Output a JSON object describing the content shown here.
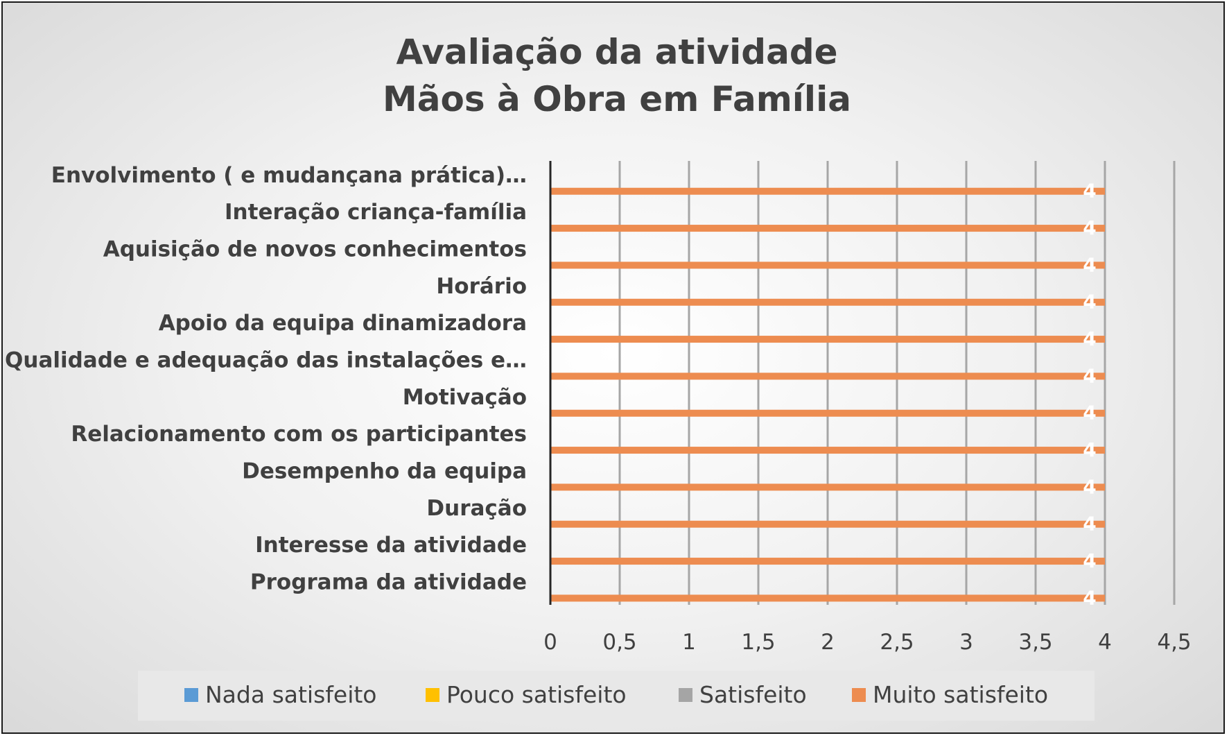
{
  "chart_data": {
    "type": "bar",
    "orientation": "horizontal",
    "title": [
      "Avaliação  da atividade",
      "Mãos à Obra em Família"
    ],
    "categories": [
      "Envolvimento ( e mudançana prática)…",
      "Interação criança-família",
      "Aquisição de novos conhecimentos",
      "Horário",
      "Apoio da equipa dinamizadora",
      "Qualidade e adequação das instalações e…",
      "Motivação",
      "Relacionamento com os participantes",
      "Desempenho da equipa",
      "Duração",
      "Interesse  da atividade",
      "Programa da atividade"
    ],
    "series": [
      {
        "name": "Nada satisfeito",
        "color": "#5b9bd5",
        "values": [
          0,
          0,
          0,
          0,
          0,
          0,
          0,
          0,
          0,
          0,
          0,
          0
        ]
      },
      {
        "name": "Pouco satisfeito",
        "color": "#ffc000",
        "values": [
          0,
          0,
          0,
          0,
          0,
          0,
          0,
          0,
          0,
          0,
          0,
          0
        ]
      },
      {
        "name": "Satisfeito",
        "color": "#a5a5a5",
        "values": [
          0,
          0,
          0,
          0,
          0,
          0,
          0,
          0,
          0,
          0,
          0,
          0
        ]
      },
      {
        "name": "Muito satisfeito",
        "color": "#ed8c50",
        "values": [
          4,
          4,
          4,
          4,
          4,
          4,
          4,
          4,
          4,
          4,
          4,
          4
        ]
      }
    ],
    "data_labels": [
      "4",
      "4",
      "4",
      "4",
      "4",
      "4",
      "4",
      "4",
      "4",
      "4",
      "4",
      "4"
    ],
    "xlim": [
      0,
      4.5
    ],
    "xticks": [
      "0",
      "0,5",
      "1",
      "1,5",
      "2",
      "2,5",
      "3",
      "3,5",
      "4",
      "4,5"
    ],
    "grid": "vertical",
    "legend_position": "bottom"
  }
}
